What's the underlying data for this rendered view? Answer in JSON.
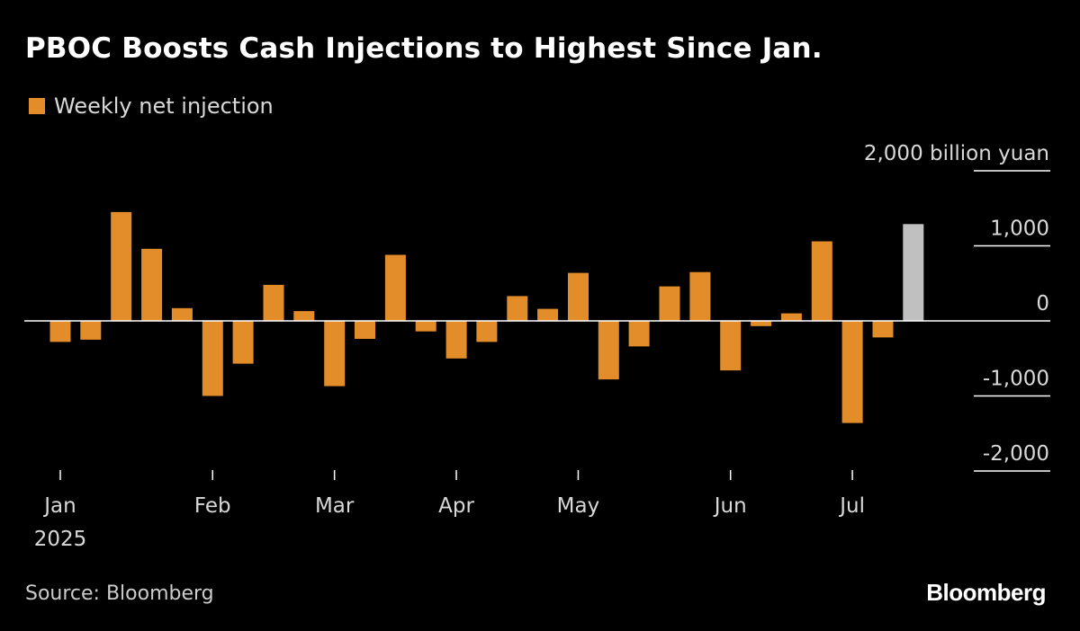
{
  "title": "PBOC Boosts Cash Injections to Highest Since Jan.",
  "legend": {
    "label": "Weekly net injection",
    "color": "#e28d2a"
  },
  "source": "Source: Bloomberg",
  "logo": "Bloomberg",
  "chart_data": {
    "type": "bar",
    "title": "PBOC Boosts Cash Injections to Highest Since Jan.",
    "ylabel": "2,000 billion yuan",
    "ylim": [
      -2000,
      2000
    ],
    "y_ticks": [
      {
        "value": 2000,
        "label": "2,000 billion yuan"
      },
      {
        "value": 1000,
        "label": "1,000"
      },
      {
        "value": 0,
        "label": "0"
      },
      {
        "value": -1000,
        "label": "-1,000"
      },
      {
        "value": -2000,
        "label": "-2,000"
      }
    ],
    "x_ticks": [
      {
        "week": 0,
        "label": "Jan",
        "sublabel": "2025"
      },
      {
        "week": 5,
        "label": "Feb"
      },
      {
        "week": 9,
        "label": "Mar"
      },
      {
        "week": 13,
        "label": "Apr"
      },
      {
        "week": 17,
        "label": "May"
      },
      {
        "week": 22,
        "label": "Jun"
      },
      {
        "week": 26,
        "label": "Jul"
      }
    ],
    "grid": false,
    "legend_position": "top-left",
    "colors": {
      "bar": "#e28d2a",
      "highlight": "#c0c0c0",
      "axis": "#ffffff",
      "tick_label": "#d9d9d9"
    },
    "series": [
      {
        "name": "Weekly net injection",
        "values": [
          -280,
          -250,
          1450,
          960,
          170,
          -1000,
          -570,
          480,
          130,
          -870,
          -240,
          880,
          -140,
          -500,
          -280,
          330,
          160,
          640,
          -780,
          -340,
          460,
          650,
          -660,
          -70,
          100,
          1060,
          -1360,
          -220,
          1290
        ],
        "highlight_index": 28
      }
    ]
  }
}
